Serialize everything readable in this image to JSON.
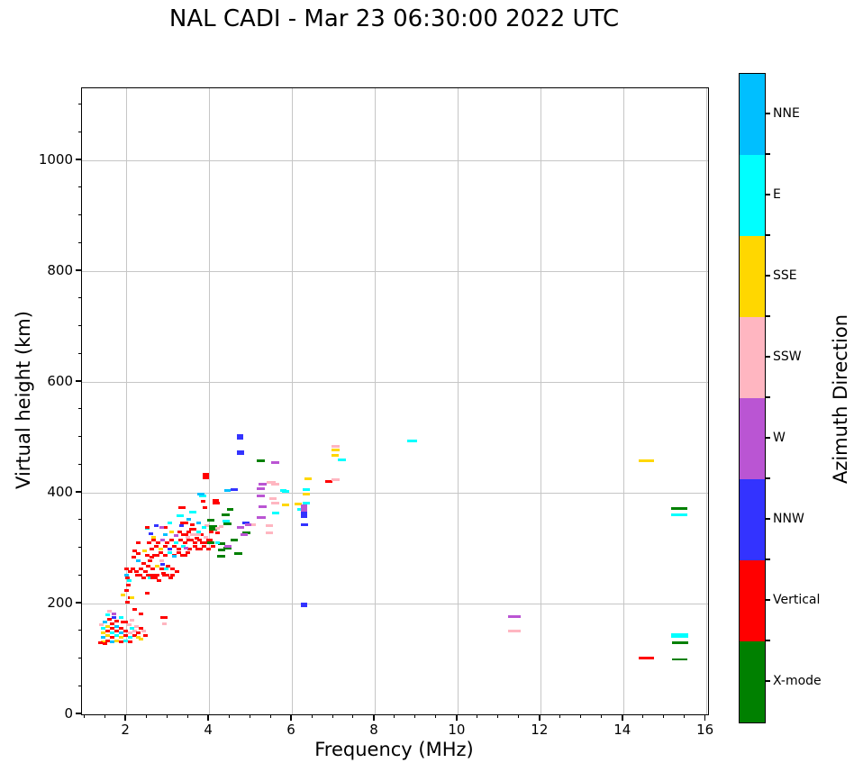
{
  "title": "NAL CADI - Mar 23 06:30:00 2022 UTC",
  "chart_data": {
    "type": "scatter",
    "title": "NAL CADI - Mar 23 06:30:00 2022 UTC",
    "xlabel": "Frequency (MHz)",
    "ylabel": "Virtual height (km)",
    "legend_title": "Azimuth Direction",
    "xlim": [
      0.93,
      16.05
    ],
    "ylim": [
      0,
      1130
    ],
    "xticks": [
      2,
      4,
      6,
      8,
      10,
      12,
      14,
      16
    ],
    "yticks": [
      0,
      200,
      400,
      600,
      800,
      1000
    ],
    "x_minor_step": 0.5,
    "y_minor_step": 50,
    "grid": true,
    "grid_color": "#c6c6c6",
    "categories": [
      {
        "key": "NNE",
        "label": "NNE",
        "color": "#00BFFF"
      },
      {
        "key": "E",
        "label": "E",
        "color": "#00FFFF"
      },
      {
        "key": "SSE",
        "label": "SSE",
        "color": "#FFD700"
      },
      {
        "key": "SSW",
        "label": "SSW",
        "color": "#FFB6C1"
      },
      {
        "key": "W",
        "label": "W",
        "color": "#BA55D3"
      },
      {
        "key": "NNW",
        "label": "NNW",
        "color": "#3333FF"
      },
      {
        "key": "V",
        "label": "Vertical",
        "color": "#FF0000"
      },
      {
        "key": "X",
        "label": "X-mode",
        "color": "#008000"
      }
    ],
    "points_format": [
      "freq_MHz",
      "virtual_height_km",
      "direction_key",
      "marker_w_px",
      "marker_h_px"
    ],
    "points": [
      [
        1.54,
        179,
        "E"
      ],
      [
        1.7,
        182,
        "W"
      ],
      [
        1.59,
        171,
        "V"
      ],
      [
        1.7,
        174,
        "NNW"
      ],
      [
        1.48,
        166,
        "NNE"
      ],
      [
        1.76,
        169,
        "V"
      ],
      [
        1.87,
        174,
        "E"
      ],
      [
        1.65,
        163,
        "V"
      ],
      [
        1.95,
        166,
        "V",
        8
      ],
      [
        2.07,
        161,
        "SSW"
      ],
      [
        1.44,
        155,
        "E"
      ],
      [
        1.54,
        158,
        "SSE"
      ],
      [
        1.65,
        155,
        "V"
      ],
      [
        1.76,
        158,
        "NNE"
      ],
      [
        1.87,
        155,
        "V"
      ],
      [
        2.24,
        158,
        "SSW"
      ],
      [
        2.35,
        155,
        "V"
      ],
      [
        1.44,
        147,
        "SSE"
      ],
      [
        1.54,
        150,
        "V"
      ],
      [
        1.65,
        147,
        "E"
      ],
      [
        1.76,
        150,
        "V"
      ],
      [
        1.87,
        147,
        "NNE"
      ],
      [
        1.98,
        150,
        "V"
      ],
      [
        2.09,
        147,
        "SSW"
      ],
      [
        2.2,
        150,
        "SSW"
      ],
      [
        2.3,
        147,
        "V"
      ],
      [
        2.41,
        150,
        "SSW"
      ],
      [
        1.44,
        139,
        "NNE"
      ],
      [
        1.54,
        142,
        "SSE"
      ],
      [
        1.65,
        139,
        "V"
      ],
      [
        1.76,
        142,
        "E"
      ],
      [
        1.87,
        139,
        "SSE"
      ],
      [
        1.98,
        142,
        "V"
      ],
      [
        2.09,
        139,
        "E"
      ],
      [
        2.2,
        142,
        "V"
      ],
      [
        2.3,
        139,
        "SSE"
      ],
      [
        1.44,
        131,
        "SSE"
      ],
      [
        1.54,
        133,
        "V"
      ],
      [
        1.65,
        131,
        "NNE"
      ],
      [
        1.76,
        133,
        "SSE"
      ],
      [
        1.87,
        131,
        "V"
      ],
      [
        1.98,
        133,
        "E"
      ],
      [
        2.09,
        131,
        "V"
      ],
      [
        1.48,
        127,
        "V"
      ],
      [
        2.46,
        143,
        "V"
      ],
      [
        2.35,
        135,
        "SSE"
      ],
      [
        1.4,
        161,
        "SSW"
      ],
      [
        2.13,
        155,
        "E"
      ],
      [
        2.13,
        170,
        "SSW"
      ],
      [
        1.59,
        186,
        "SSW"
      ],
      [
        1.37,
        130,
        "V"
      ],
      [
        2.0,
        263,
        "V"
      ],
      [
        2.02,
        247,
        "V"
      ],
      [
        2.07,
        242,
        "E"
      ],
      [
        2.0,
        252,
        "NNE"
      ],
      [
        2.04,
        234,
        "V"
      ],
      [
        2.0,
        223,
        "V"
      ],
      [
        2.09,
        211,
        "V"
      ],
      [
        2.13,
        211,
        "SSE"
      ],
      [
        2.02,
        203,
        "V"
      ],
      [
        1.91,
        215,
        "SSE"
      ],
      [
        2.5,
        218,
        "V"
      ],
      [
        2.35,
        182,
        "V"
      ],
      [
        2.9,
        174,
        "V",
        8
      ],
      [
        2.93,
        163,
        "SSW"
      ],
      [
        2.1,
        258,
        "V"
      ],
      [
        2.2,
        190,
        "V"
      ],
      [
        2.15,
        262,
        "V"
      ],
      [
        2.24,
        258,
        "V"
      ],
      [
        2.3,
        252,
        "V",
        8
      ],
      [
        2.35,
        263,
        "V"
      ],
      [
        2.46,
        258,
        "V"
      ],
      [
        2.41,
        247,
        "V"
      ],
      [
        2.52,
        252,
        "V"
      ],
      [
        2.57,
        247,
        "E"
      ],
      [
        2.63,
        252,
        "V"
      ],
      [
        2.68,
        247,
        "V",
        8
      ],
      [
        2.74,
        252,
        "V"
      ],
      [
        2.79,
        242,
        "V"
      ],
      [
        2.52,
        268,
        "V"
      ],
      [
        2.63,
        263,
        "V"
      ],
      [
        2.74,
        268,
        "SSE"
      ],
      [
        2.85,
        263,
        "V"
      ],
      [
        2.9,
        255,
        "V"
      ],
      [
        2.96,
        252,
        "V",
        8
      ],
      [
        3.07,
        247,
        "V"
      ],
      [
        3.12,
        252,
        "V"
      ],
      [
        2.96,
        263,
        "E"
      ],
      [
        3.01,
        268,
        "V"
      ],
      [
        3.12,
        263,
        "V"
      ],
      [
        3.23,
        258,
        "V"
      ],
      [
        2.41,
        273,
        "V"
      ],
      [
        2.3,
        278,
        "NNE"
      ],
      [
        2.57,
        278,
        "V"
      ],
      [
        2.85,
        278,
        "SSW"
      ],
      [
        2.5,
        287,
        "V"
      ],
      [
        2.61,
        283,
        "V"
      ],
      [
        2.72,
        287,
        "V",
        8
      ],
      [
        2.83,
        292,
        "V"
      ],
      [
        2.94,
        287,
        "V"
      ],
      [
        3.05,
        292,
        "E"
      ],
      [
        3.16,
        287,
        "V"
      ],
      [
        3.27,
        292,
        "V"
      ],
      [
        3.38,
        287,
        "V",
        8
      ],
      [
        3.49,
        292,
        "V"
      ],
      [
        2.61,
        298,
        "V"
      ],
      [
        2.72,
        303,
        "V"
      ],
      [
        2.83,
        298,
        "SSE"
      ],
      [
        2.94,
        303,
        "V"
      ],
      [
        3.05,
        298,
        "NNW"
      ],
      [
        3.16,
        303,
        "V"
      ],
      [
        3.27,
        298,
        "V"
      ],
      [
        3.38,
        303,
        "E"
      ],
      [
        2.55,
        310,
        "V"
      ],
      [
        2.66,
        315,
        "V"
      ],
      [
        2.77,
        310,
        "V"
      ],
      [
        2.88,
        315,
        "W"
      ],
      [
        2.99,
        310,
        "V"
      ],
      [
        3.1,
        315,
        "V"
      ],
      [
        3.21,
        310,
        "E"
      ],
      [
        3.32,
        315,
        "V"
      ],
      [
        3.43,
        310,
        "V"
      ],
      [
        2.5,
        336,
        "E"
      ],
      [
        2.73,
        341,
        "NNW"
      ],
      [
        2.95,
        338,
        "V"
      ],
      [
        2.85,
        338,
        "W"
      ],
      [
        2.6,
        326,
        "NNW"
      ],
      [
        3.05,
        345,
        "E"
      ],
      [
        3.3,
        330,
        "V"
      ],
      [
        3.4,
        325,
        "V",
        8
      ],
      [
        3.5,
        330,
        "V"
      ],
      [
        3.6,
        334,
        "V",
        8
      ],
      [
        3.75,
        330,
        "E"
      ],
      [
        3.3,
        358,
        "E",
        8
      ],
      [
        3.4,
        345,
        "V",
        9
      ],
      [
        3.6,
        342,
        "V"
      ],
      [
        3.75,
        345,
        "NNE"
      ],
      [
        3.6,
        365,
        "E",
        8
      ],
      [
        3.35,
        373,
        "V",
        8
      ],
      [
        3.85,
        385,
        "V"
      ],
      [
        3.9,
        373,
        "V"
      ],
      [
        3.85,
        395,
        "E",
        8
      ],
      [
        3.8,
        397,
        "NNE",
        8
      ],
      [
        3.93,
        430,
        "V",
        7,
        7
      ],
      [
        4.15,
        383,
        "V",
        7,
        6
      ],
      [
        4.1,
        337,
        "X",
        9,
        6
      ],
      [
        4.3,
        339,
        "SSW"
      ],
      [
        4.05,
        330,
        "V"
      ],
      [
        3.54,
        315,
        "V",
        8
      ],
      [
        3.65,
        310,
        "V"
      ],
      [
        3.76,
        315,
        "V"
      ],
      [
        3.87,
        310,
        "V",
        8
      ],
      [
        3.98,
        315,
        "V"
      ],
      [
        3.54,
        298,
        "V"
      ],
      [
        3.65,
        303,
        "V"
      ],
      [
        3.76,
        298,
        "V",
        8
      ],
      [
        3.87,
        303,
        "V"
      ],
      [
        3.98,
        298,
        "V"
      ],
      [
        4.09,
        303,
        "V"
      ],
      [
        3.49,
        320,
        "SSW"
      ],
      [
        3.6,
        325,
        "SSW"
      ],
      [
        3.7,
        318,
        "V"
      ],
      [
        3.92,
        320,
        "SSW"
      ],
      [
        4.03,
        315,
        "V"
      ],
      [
        3.81,
        325,
        "V"
      ],
      [
        4.05,
        350,
        "X",
        8
      ],
      [
        4.05,
        310,
        "X",
        8
      ],
      [
        3.95,
        340,
        "SSW"
      ],
      [
        3.87,
        338,
        "E"
      ],
      [
        3.72,
        325,
        "SSW",
        7
      ],
      [
        2.45,
        295,
        "SSE"
      ],
      [
        2.67,
        320,
        "SSE"
      ],
      [
        3.1,
        330,
        "SSE"
      ],
      [
        2.95,
        325,
        "NNE"
      ],
      [
        3.2,
        322,
        "W"
      ],
      [
        3.45,
        300,
        "W"
      ],
      [
        3.15,
        285,
        "NNE"
      ],
      [
        2.88,
        270,
        "NNW"
      ],
      [
        3.33,
        340,
        "NNW"
      ],
      [
        3.5,
        352,
        "NNE"
      ],
      [
        2.2,
        295,
        "V"
      ],
      [
        2.3,
        290,
        "V"
      ],
      [
        2.28,
        310,
        "V"
      ],
      [
        2.18,
        283,
        "V"
      ],
      [
        2.5,
        337,
        "V"
      ],
      [
        4.3,
        308,
        "X",
        8
      ],
      [
        4.3,
        297,
        "X",
        8
      ],
      [
        4.45,
        300,
        "X",
        9
      ],
      [
        4.45,
        303,
        "W",
        8
      ],
      [
        4.6,
        315,
        "X",
        8
      ],
      [
        4.7,
        290,
        "X",
        9
      ],
      [
        4.3,
        285,
        "X",
        9
      ],
      [
        4.9,
        327,
        "X",
        9
      ],
      [
        4.85,
        325,
        "W",
        8
      ],
      [
        4.75,
        337,
        "W",
        8
      ],
      [
        4.4,
        360,
        "X",
        9
      ],
      [
        4.5,
        370,
        "X",
        7
      ],
      [
        4.4,
        348,
        "E",
        8
      ],
      [
        4.45,
        344,
        "X",
        9
      ],
      [
        4.2,
        382,
        "V"
      ],
      [
        4.2,
        335,
        "SSW"
      ],
      [
        4.2,
        327,
        "V"
      ],
      [
        4.2,
        310,
        "E"
      ],
      [
        4.75,
        500,
        "NNW",
        7,
        6
      ],
      [
        4.75,
        473,
        "NNW",
        8,
        5
      ],
      [
        4.6,
        405,
        "NNW",
        8
      ],
      [
        4.45,
        404,
        "NNE",
        7
      ],
      [
        5.25,
        458,
        "X",
        9
      ],
      [
        5.6,
        455,
        "W",
        9
      ],
      [
        5.3,
        415,
        "W",
        9
      ],
      [
        5.5,
        418,
        "SSW",
        10
      ],
      [
        5.25,
        408,
        "W",
        9
      ],
      [
        5.6,
        415,
        "SSW",
        9
      ],
      [
        5.85,
        402,
        "E",
        8
      ],
      [
        5.8,
        404,
        "E",
        7
      ],
      [
        5.25,
        395,
        "W",
        9
      ],
      [
        5.6,
        382,
        "SSW",
        9
      ],
      [
        5.85,
        378,
        "SSE",
        8
      ],
      [
        5.3,
        375,
        "W",
        9
      ],
      [
        5.25,
        355,
        "W",
        10
      ],
      [
        5.45,
        340,
        "SSW",
        8
      ],
      [
        5.45,
        327,
        "SSW",
        8
      ],
      [
        5.05,
        342,
        "SSW",
        8
      ],
      [
        4.9,
        345,
        "NNW",
        8
      ],
      [
        4.95,
        343,
        "W",
        7
      ],
      [
        5.6,
        363,
        "E",
        8
      ],
      [
        5.55,
        390,
        "SSW",
        8
      ],
      [
        6.15,
        380,
        "SSE",
        8
      ],
      [
        6.35,
        406,
        "E",
        8
      ],
      [
        6.35,
        398,
        "SSE",
        8
      ],
      [
        6.4,
        425,
        "SSE",
        8
      ],
      [
        6.35,
        381,
        "E",
        8
      ],
      [
        6.2,
        370,
        "E",
        7
      ],
      [
        6.3,
        372,
        "W",
        7,
        8
      ],
      [
        6.3,
        360,
        "NNW",
        7,
        7
      ],
      [
        6.3,
        343,
        "NNW",
        8
      ],
      [
        6.3,
        197,
        "NNW",
        7,
        5
      ],
      [
        6.9,
        420,
        "V",
        8
      ],
      [
        7.05,
        423,
        "SSW",
        9
      ],
      [
        7.05,
        483,
        "SSW",
        9
      ],
      [
        7.05,
        478,
        "SSE",
        9
      ],
      [
        7.05,
        468,
        "SSE",
        8
      ],
      [
        7.2,
        460,
        "E",
        9
      ],
      [
        8.9,
        494,
        "E",
        11
      ],
      [
        11.37,
        177,
        "W",
        14
      ],
      [
        11.37,
        151,
        "SSW",
        14
      ],
      [
        14.55,
        458,
        "SSE",
        17
      ],
      [
        15.35,
        371,
        "X",
        18
      ],
      [
        15.35,
        360,
        "E",
        18
      ],
      [
        15.37,
        143,
        "E",
        19,
        5
      ],
      [
        15.37,
        130,
        "X",
        18
      ],
      [
        14.55,
        101,
        "V",
        17
      ],
      [
        15.37,
        99,
        "X",
        17,
        2
      ]
    ]
  }
}
